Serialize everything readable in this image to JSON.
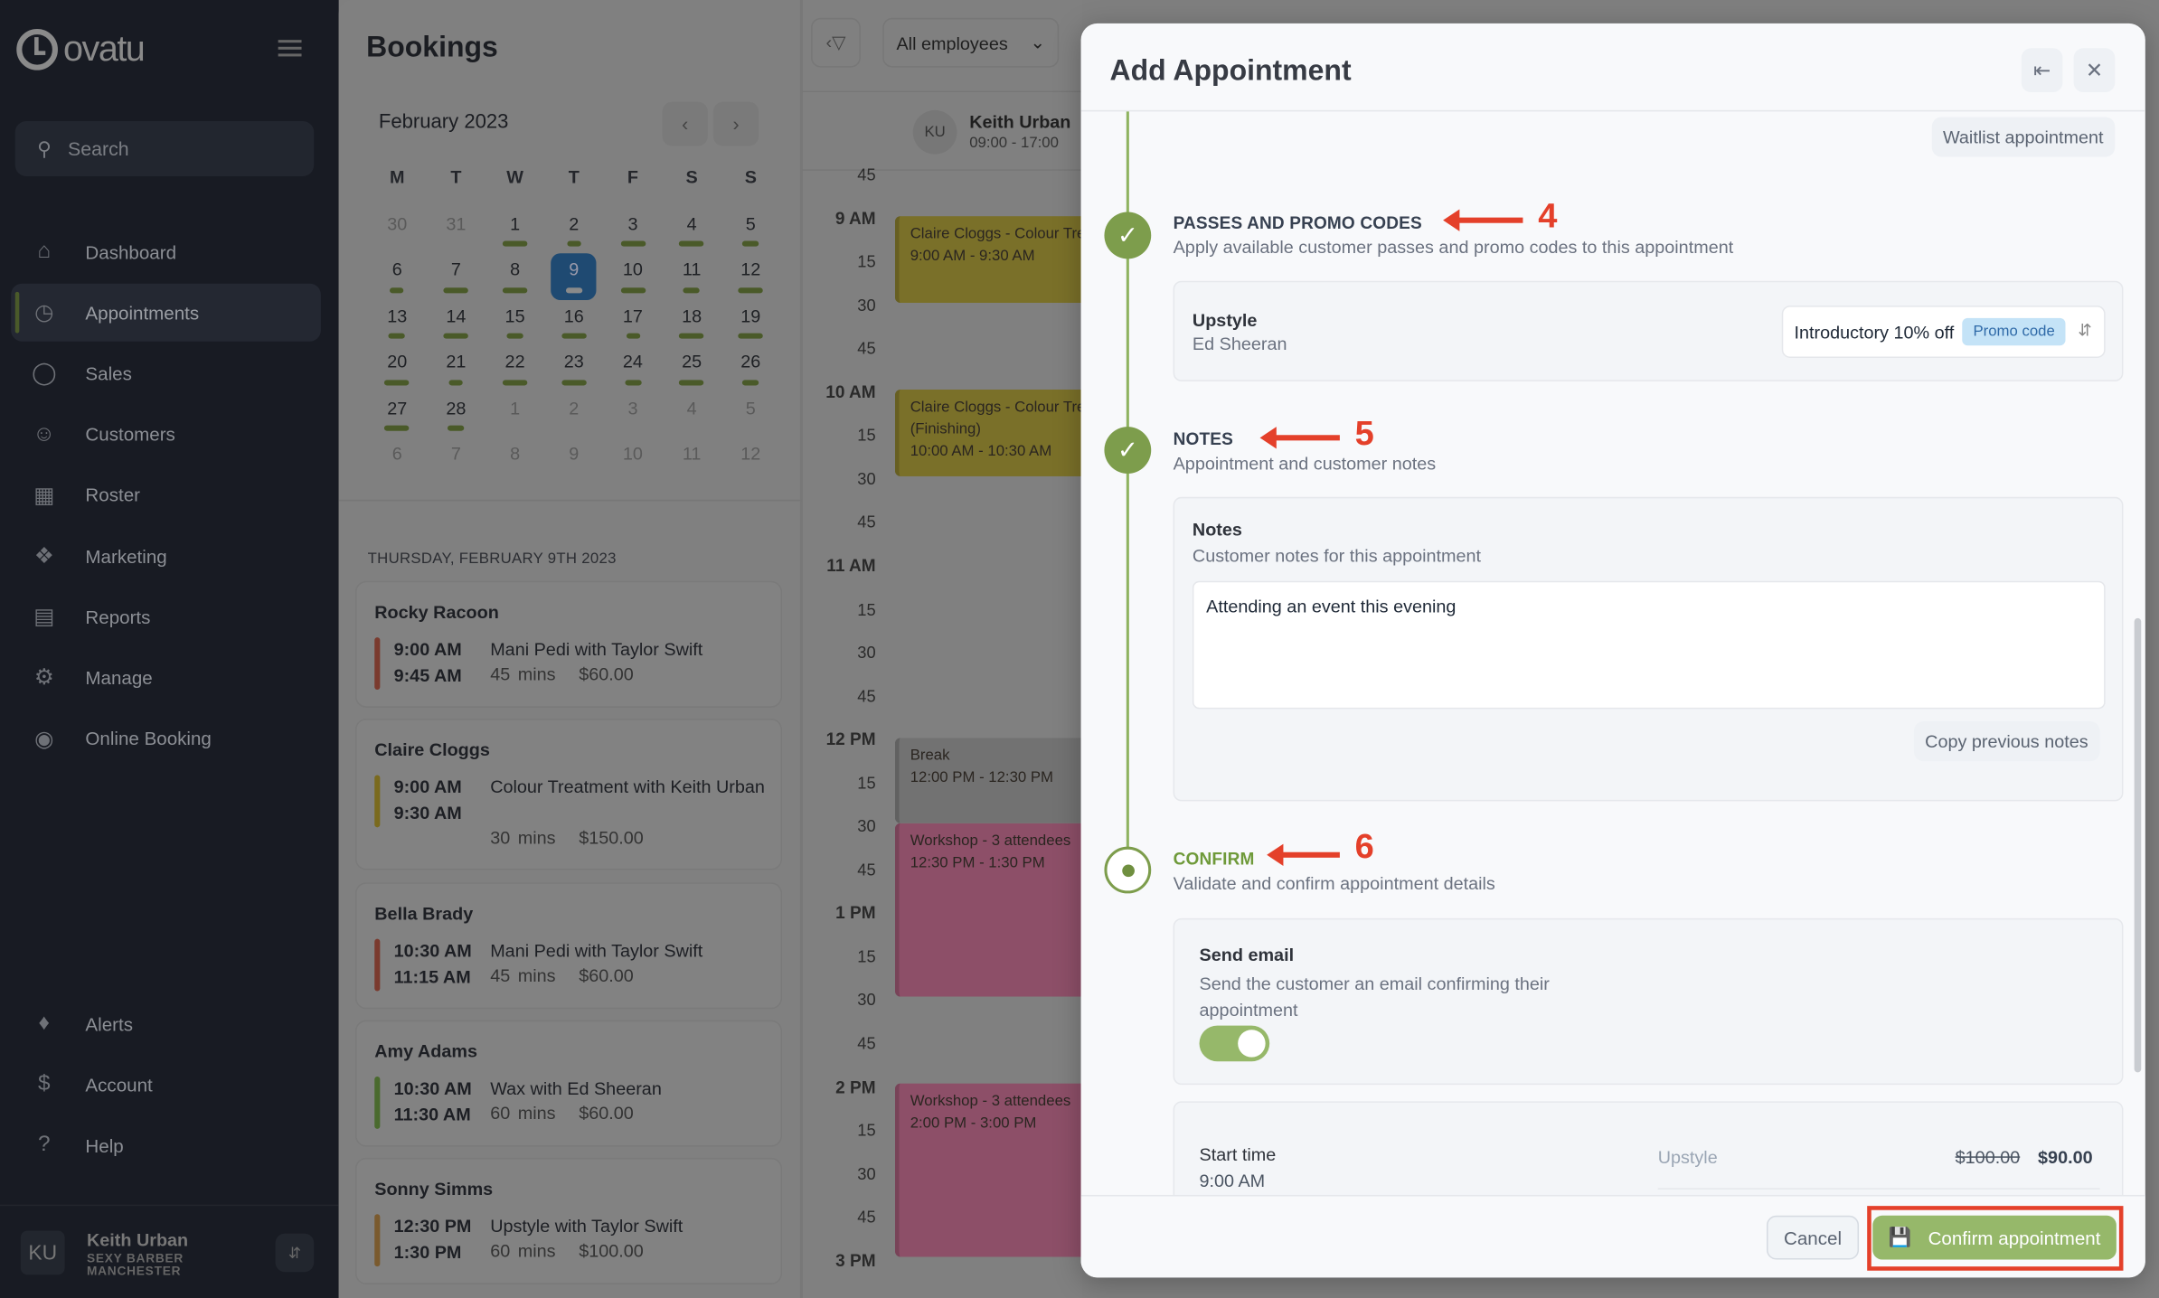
{
  "app": {
    "logo_text": "ovatu",
    "search_placeholder": "Search"
  },
  "sidebar": {
    "items": [
      {
        "label": "Dashboard",
        "icon": "home-icon"
      },
      {
        "label": "Appointments",
        "icon": "clock-icon",
        "active": true
      },
      {
        "label": "Sales",
        "icon": "tag-icon"
      },
      {
        "label": "Customers",
        "icon": "users-icon"
      },
      {
        "label": "Roster",
        "icon": "calendar-icon"
      },
      {
        "label": "Marketing",
        "icon": "megaphone-icon"
      },
      {
        "label": "Reports",
        "icon": "chart-icon"
      },
      {
        "label": "Manage",
        "icon": "gear-icon"
      },
      {
        "label": "Online Booking",
        "icon": "globe-icon"
      }
    ],
    "bottom_items": [
      {
        "label": "Alerts",
        "icon": "bell-icon"
      },
      {
        "label": "Account",
        "icon": "dollar-icon"
      },
      {
        "label": "Help",
        "icon": "help-icon"
      }
    ],
    "user": {
      "initials": "KU",
      "name": "Keith Urban",
      "business_line1": "SEXY BARBER",
      "business_line2": "MANCHESTER"
    }
  },
  "bookings": {
    "title": "Bookings",
    "month": "February 2023",
    "weekdays": [
      "M",
      "T",
      "W",
      "T",
      "F",
      "S",
      "S"
    ],
    "weeks": [
      [
        "30",
        "31",
        "1",
        "2",
        "3",
        "4",
        "5"
      ],
      [
        "6",
        "7",
        "8",
        "9",
        "10",
        "11",
        "12"
      ],
      [
        "13",
        "14",
        "15",
        "16",
        "17",
        "18",
        "19"
      ],
      [
        "20",
        "21",
        "22",
        "23",
        "24",
        "25",
        "26"
      ],
      [
        "27",
        "28",
        "1",
        "2",
        "3",
        "4",
        "5"
      ],
      [
        "6",
        "7",
        "8",
        "9",
        "10",
        "11",
        "12"
      ]
    ],
    "selected_day": "9",
    "day_header": "THURSDAY, FEBRUARY 9TH 2023",
    "appointments": [
      {
        "customer": "Rocky Racoon",
        "start": "9:00 AM",
        "end": "9:45 AM",
        "service": "Mani Pedi with Taylor Swift",
        "duration": "45 mins",
        "price": "$60.00",
        "color": "#7a3a2e"
      },
      {
        "customer": "Claire Cloggs",
        "start": "9:00 AM",
        "end": "9:30 AM",
        "service": "Colour Treatment with Keith Urban",
        "duration": "30 mins",
        "price": "$150.00",
        "color": "#7a6a1e"
      },
      {
        "customer": "Bella Brady",
        "start": "10:30 AM",
        "end": "11:15 AM",
        "service": "Mani Pedi with Taylor Swift",
        "duration": "45 mins",
        "price": "$60.00",
        "color": "#7a3a2e"
      },
      {
        "customer": "Amy Adams",
        "start": "10:30 AM",
        "end": "11:30 AM",
        "service": "Wax with Ed Sheeran",
        "duration": "60 mins",
        "price": "$60.00",
        "color": "#4a6a2e"
      },
      {
        "customer": "Sonny Simms",
        "start": "12:30 PM",
        "end": "1:30 PM",
        "service": "Upstyle with Taylor Swift",
        "duration": "60 mins",
        "price": "$100.00",
        "color": "#7a5a2e"
      }
    ]
  },
  "schedule": {
    "filter": "All employees",
    "employee": {
      "initials": "KU",
      "name": "Keith Urban",
      "hours": "09:00 - 17:00"
    },
    "time_labels": [
      {
        "t": "45"
      },
      {
        "t": "9 AM",
        "hour": true
      },
      {
        "t": "15"
      },
      {
        "t": "30"
      },
      {
        "t": "45"
      },
      {
        "t": "10 AM",
        "hour": true
      },
      {
        "t": "15"
      },
      {
        "t": "30"
      },
      {
        "t": "45"
      },
      {
        "t": "11 AM",
        "hour": true
      },
      {
        "t": "15"
      },
      {
        "t": "30"
      },
      {
        "t": "45"
      },
      {
        "t": "12 PM",
        "hour": true
      },
      {
        "t": "15"
      },
      {
        "t": "30"
      },
      {
        "t": "45"
      },
      {
        "t": "1 PM",
        "hour": true
      },
      {
        "t": "15"
      },
      {
        "t": "30"
      },
      {
        "t": "45"
      },
      {
        "t": "2 PM",
        "hour": true
      },
      {
        "t": "15"
      },
      {
        "t": "30"
      },
      {
        "t": "45"
      },
      {
        "t": "3 PM",
        "hour": true
      }
    ],
    "events": [
      {
        "title": "Claire Cloggs - Colour Treatment",
        "time": "9:00 AM - 9:30 AM",
        "color": "#7a7029"
      },
      {
        "title": "Claire Cloggs - Colour Treatment",
        "extra": "(Finishing)",
        "time": "10:00 AM - 10:30 AM",
        "color": "#7a7029"
      },
      {
        "title": "Break",
        "time": "12:00 PM - 12:30 PM",
        "color": "#727272"
      },
      {
        "title": "Workshop - 3 attendees",
        "time": "12:30 PM - 1:30 PM",
        "color": "#8d4f68"
      },
      {
        "title": "Workshop - 3 attendees",
        "time": "2:00 PM - 3:00 PM",
        "color": "#8d4f68"
      }
    ]
  },
  "modal": {
    "title": "Add Appointment",
    "waitlist": "Waitlist appointment",
    "passes": {
      "heading": "PASSES AND PROMO CODES",
      "subtitle": "Apply available customer passes and promo codes to this appointment",
      "annotation": "4",
      "service": "Upstyle",
      "staff": "Ed Sheeran",
      "promo_value": "Introductory 10% off",
      "promo_badge": "Promo code"
    },
    "notes": {
      "heading": "NOTES",
      "subtitle": "Appointment and customer notes",
      "annotation": "5",
      "label": "Notes",
      "sublabel": "Customer notes for this appointment",
      "value": "Attending an event this evening",
      "copy_button": "Copy previous notes"
    },
    "confirm": {
      "heading": "CONFIRM",
      "subtitle": "Validate and confirm appointment details",
      "annotation": "6",
      "send_email_label": "Send email",
      "send_email_desc": "Send the customer an email confirming their appointment",
      "send_email_on": true,
      "start_time_label": "Start time",
      "start_time": "9:00 AM",
      "service": "Upstyle",
      "original_price": "$100.00",
      "price": "$90.00"
    },
    "cancel": "Cancel",
    "confirm_button": "Confirm appointment"
  },
  "colors": {
    "accent_green": "#96b86a",
    "annotation_red": "#e4402a",
    "selected_day": "#1f4a72"
  }
}
